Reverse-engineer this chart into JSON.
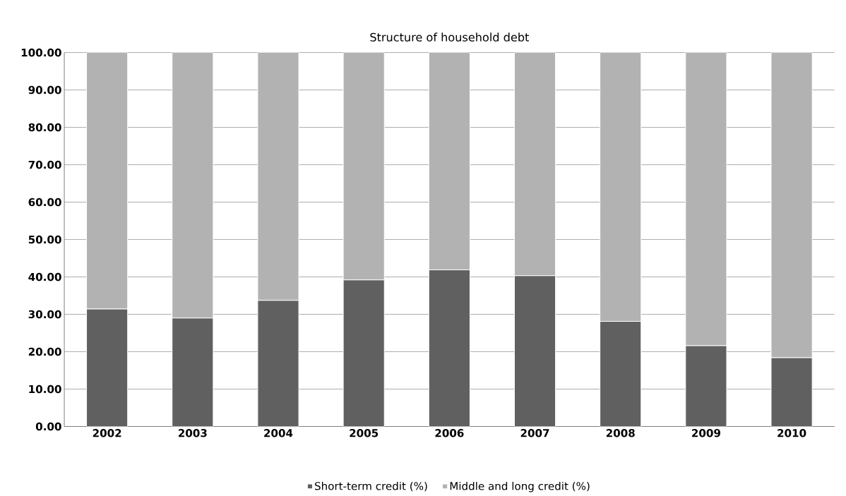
{
  "chart_data": {
    "type": "bar",
    "title": "Structure of household debt",
    "stacked": true,
    "categories": [
      "2002",
      "2003",
      "2004",
      "2005",
      "2006",
      "2007",
      "2008",
      "2009",
      "2010"
    ],
    "series": [
      {
        "name": "Short-term credit (%)",
        "color": "#606060",
        "values": [
          31.4,
          29.0,
          33.7,
          39.2,
          41.9,
          40.3,
          28.1,
          21.6,
          18.4
        ]
      },
      {
        "name": "Middle and long  credit (%)",
        "color": "#b2b2b2",
        "values": [
          68.6,
          71.0,
          66.3,
          60.8,
          58.1,
          59.7,
          71.9,
          78.4,
          81.6
        ]
      }
    ],
    "ylim": [
      0,
      100
    ],
    "yticks": [
      {
        "value": 0,
        "label": "0.00"
      },
      {
        "value": 10,
        "label": "10.00"
      },
      {
        "value": 20,
        "label": "20.00"
      },
      {
        "value": 30,
        "label": "30.00"
      },
      {
        "value": 40,
        "label": "40.00"
      },
      {
        "value": 50,
        "label": "50.00"
      },
      {
        "value": 60,
        "label": "60.00"
      },
      {
        "value": 70,
        "label": "70.00"
      },
      {
        "value": 80,
        "label": "80.00"
      },
      {
        "value": 90,
        "label": "90.00"
      },
      {
        "value": 100,
        "label": "100.00"
      }
    ],
    "grid": "y",
    "legend": "bottom"
  }
}
